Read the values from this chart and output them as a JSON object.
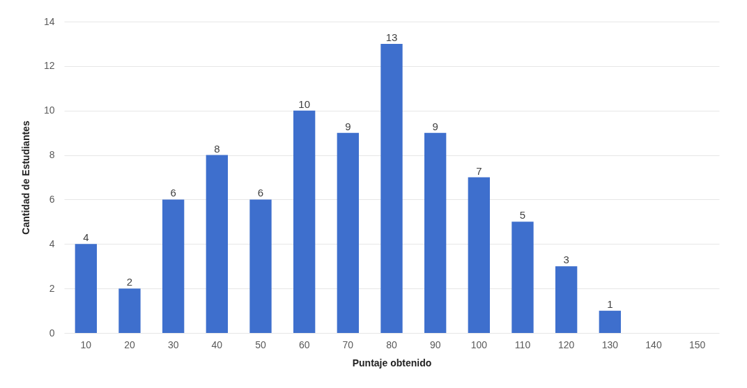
{
  "chart_data": {
    "type": "bar",
    "xlabel": "Puntaje obtenido",
    "ylabel": "Cantidad de Estudiantes",
    "categories": [
      "10",
      "20",
      "30",
      "40",
      "50",
      "60",
      "70",
      "80",
      "90",
      "100",
      "110",
      "120",
      "130",
      "140",
      "150"
    ],
    "values": [
      4,
      2,
      6,
      8,
      6,
      10,
      9,
      13,
      9,
      7,
      5,
      3,
      1,
      0,
      0
    ],
    "value_labels": [
      "4",
      "2",
      "6",
      "8",
      "6",
      "10",
      "9",
      "13",
      "9",
      "7",
      "5",
      "3",
      "1",
      null,
      null
    ],
    "color": "#3e6fcd",
    "ylim": [
      0,
      14
    ],
    "yticks": [
      0,
      2,
      4,
      6,
      8,
      10,
      12,
      14
    ],
    "grid": "y"
  }
}
